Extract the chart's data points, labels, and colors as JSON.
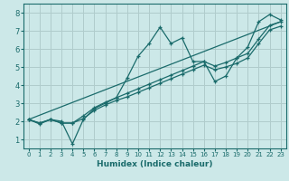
{
  "xlabel": "Humidex (Indice chaleur)",
  "xlim": [
    -0.5,
    23.5
  ],
  "ylim": [
    0.5,
    8.5
  ],
  "yticks": [
    1,
    2,
    3,
    4,
    5,
    6,
    7,
    8
  ],
  "xticks": [
    0,
    1,
    2,
    3,
    4,
    5,
    6,
    7,
    8,
    9,
    10,
    11,
    12,
    13,
    14,
    15,
    16,
    17,
    18,
    19,
    20,
    21,
    22,
    23
  ],
  "bg_color": "#cce8e8",
  "grid_color": "#b0cccc",
  "line_color": "#1a6b6b",
  "series1_x": [
    0,
    1,
    2,
    3,
    4,
    5,
    6,
    7,
    8,
    9,
    10,
    11,
    12,
    13,
    14,
    15,
    16,
    17,
    18,
    19,
    20,
    21,
    22,
    23
  ],
  "series1_y": [
    2.1,
    1.85,
    2.1,
    2.0,
    0.75,
    2.1,
    2.7,
    3.0,
    3.3,
    4.4,
    5.6,
    6.3,
    7.2,
    6.3,
    6.6,
    5.3,
    5.3,
    4.2,
    4.5,
    5.5,
    6.1,
    7.5,
    7.9,
    7.6
  ],
  "series2_x": [
    0,
    1,
    2,
    3,
    4,
    5,
    6,
    7,
    8,
    9,
    10,
    11,
    12,
    13,
    14,
    15,
    16,
    17,
    18,
    19,
    20,
    21,
    22,
    23
  ],
  "series2_y": [
    2.1,
    1.9,
    2.1,
    1.9,
    1.9,
    2.3,
    2.75,
    3.05,
    3.3,
    3.55,
    3.8,
    4.05,
    4.3,
    4.55,
    4.8,
    5.05,
    5.3,
    5.05,
    5.25,
    5.5,
    5.75,
    6.55,
    7.3,
    7.5
  ],
  "series3_x": [
    0,
    1,
    2,
    3,
    4,
    5,
    6,
    7,
    8,
    9,
    10,
    11,
    12,
    13,
    14,
    15,
    16,
    17,
    18,
    19,
    20,
    21,
    22,
    23
  ],
  "series3_y": [
    2.1,
    1.9,
    2.1,
    1.9,
    1.9,
    2.15,
    2.6,
    2.9,
    3.15,
    3.35,
    3.6,
    3.85,
    4.1,
    4.35,
    4.6,
    4.85,
    5.1,
    4.85,
    5.0,
    5.2,
    5.5,
    6.3,
    7.05,
    7.25
  ],
  "series4_x": [
    0,
    23
  ],
  "series4_y": [
    2.1,
    7.5
  ]
}
